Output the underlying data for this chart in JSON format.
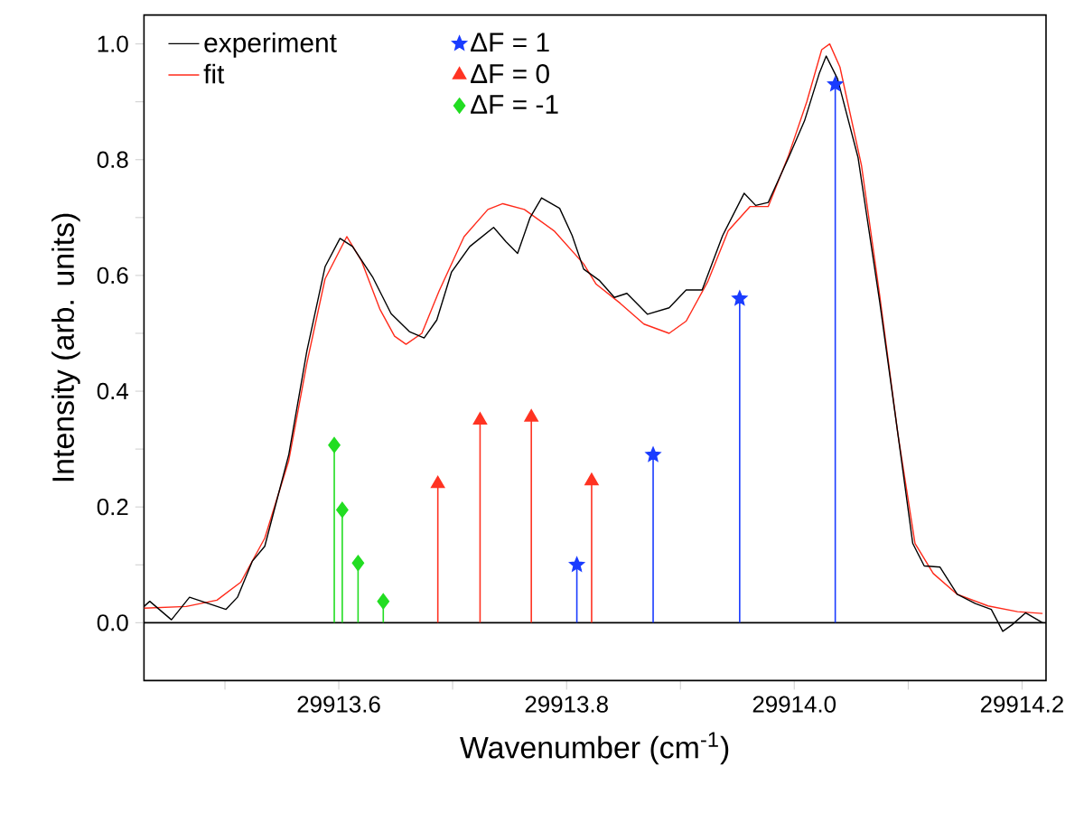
{
  "chart_data": {
    "type": "line",
    "xlabel": "Wavenumber (cm$^{-1}$)",
    "ylabel": "Intensity (arb. units)",
    "xlim": [
      29913.429,
      29914.221
    ],
    "ylim": [
      -0.1,
      1.05
    ],
    "xticks": [
      {
        "value": 29913.5,
        "label": null
      },
      {
        "value": 29913.6,
        "label": "29913.6"
      },
      {
        "value": 29913.7,
        "label": null
      },
      {
        "value": 29913.8,
        "label": "29913.8"
      },
      {
        "value": 29913.9,
        "label": null
      },
      {
        "value": 29914.0,
        "label": "29914.0"
      },
      {
        "value": 29914.1,
        "label": null
      },
      {
        "value": 29914.2,
        "label": "29914.2"
      }
    ],
    "yticks": [
      {
        "value": 0,
        "label": "0.0"
      },
      {
        "value": 0.1,
        "label": null
      },
      {
        "value": 0.2,
        "label": "0.2"
      },
      {
        "value": 0.3,
        "label": null
      },
      {
        "value": 0.4,
        "label": "0.4"
      },
      {
        "value": 0.5,
        "label": null
      },
      {
        "value": 0.6,
        "label": "0.6"
      },
      {
        "value": 0.7,
        "label": null
      },
      {
        "value": 0.8,
        "label": "0.8"
      },
      {
        "value": 0.9,
        "label": null
      },
      {
        "value": 1.0,
        "label": "1.0"
      }
    ],
    "legend": "top left",
    "grid": false,
    "ref_lines": [
      {
        "axis": "y",
        "value": 0,
        "color": "#000000"
      }
    ],
    "series": [
      {
        "name": "experiment",
        "color": "#000000",
        "marker": "none",
        "x": [
          29913.429,
          29913.434,
          29913.453,
          29913.469,
          29913.501,
          29913.511,
          29913.524,
          29913.535,
          29913.556,
          29913.572,
          29913.588,
          29913.601,
          29913.612,
          29913.63,
          29913.646,
          29913.662,
          29913.675,
          29913.686,
          29913.699,
          29913.715,
          29913.736,
          29913.747,
          29913.757,
          29913.768,
          29913.778,
          29913.794,
          29913.805,
          29913.815,
          29913.829,
          29913.842,
          29913.853,
          29913.871,
          29913.89,
          29913.905,
          29913.919,
          29913.937,
          29913.956,
          29913.966,
          29913.977,
          29913.995,
          29914.009,
          29914.022,
          29914.028,
          29914.038,
          29914.056,
          29914.075,
          29914.091,
          29914.104,
          29914.114,
          29914.128,
          29914.143,
          29914.159,
          29914.173,
          29914.183,
          29914.191,
          29914.203,
          29914.218
        ],
        "values": [
          0.028,
          0.037,
          0.005,
          0.044,
          0.023,
          0.044,
          0.106,
          0.132,
          0.29,
          0.469,
          0.615,
          0.664,
          0.65,
          0.596,
          0.534,
          0.503,
          0.492,
          0.523,
          0.606,
          0.65,
          0.683,
          0.658,
          0.638,
          0.7,
          0.734,
          0.716,
          0.669,
          0.611,
          0.591,
          0.562,
          0.569,
          0.533,
          0.544,
          0.575,
          0.575,
          0.669,
          0.742,
          0.721,
          0.726,
          0.804,
          0.867,
          0.95,
          0.979,
          0.94,
          0.804,
          0.554,
          0.325,
          0.137,
          0.098,
          0.096,
          0.049,
          0.033,
          0.023,
          -0.015,
          -0.004,
          0.017,
          0.0
        ]
      },
      {
        "name": "fit",
        "color": "#ff2a1a",
        "marker": "none",
        "x": [
          29913.429,
          29913.466,
          29913.493,
          29913.514,
          29913.535,
          29913.556,
          29913.572,
          29913.588,
          29913.607,
          29913.62,
          29913.636,
          29913.649,
          29913.659,
          29913.673,
          29913.688,
          29913.71,
          29913.731,
          29913.744,
          29913.763,
          29913.789,
          29913.815,
          29913.826,
          29913.847,
          29913.868,
          29913.89,
          29913.905,
          29913.924,
          29913.942,
          29913.961,
          29913.977,
          29913.995,
          29914.011,
          29914.024,
          29914.031,
          29914.04,
          29914.059,
          29914.075,
          29914.091,
          29914.106,
          29914.122,
          29914.143,
          29914.17,
          29914.196,
          29914.218
        ],
        "values": [
          0.025,
          0.028,
          0.039,
          0.07,
          0.146,
          0.28,
          0.448,
          0.594,
          0.667,
          0.625,
          0.542,
          0.495,
          0.481,
          0.5,
          0.573,
          0.667,
          0.714,
          0.724,
          0.714,
          0.677,
          0.62,
          0.585,
          0.552,
          0.516,
          0.5,
          0.521,
          0.589,
          0.677,
          0.719,
          0.719,
          0.808,
          0.9,
          0.99,
          1.0,
          0.96,
          0.79,
          0.565,
          0.325,
          0.137,
          0.085,
          0.049,
          0.029,
          0.019,
          0.016
        ]
      },
      {
        "name": "ΔF = 1",
        "color": "#1a3cff",
        "type": "lollipop",
        "marker": "star",
        "x": [
          29913.809,
          29913.876,
          29913.952,
          29914.036
        ],
        "values": [
          0.1,
          0.29,
          0.56,
          0.93
        ]
      },
      {
        "name": "ΔF = 0",
        "color": "#ff3322",
        "type": "lollipop",
        "marker": "triangle",
        "x": [
          29913.687,
          29913.724,
          29913.769,
          29913.822
        ],
        "values": [
          0.24,
          0.35,
          0.355,
          0.245
        ]
      },
      {
        "name": "ΔF = -1",
        "color": "#22dd22",
        "type": "lollipop",
        "marker": "diamond",
        "x": [
          29913.596,
          29913.603,
          29913.617,
          29913.639
        ],
        "values": [
          0.307,
          0.195,
          0.103,
          0.037
        ]
      }
    ]
  }
}
